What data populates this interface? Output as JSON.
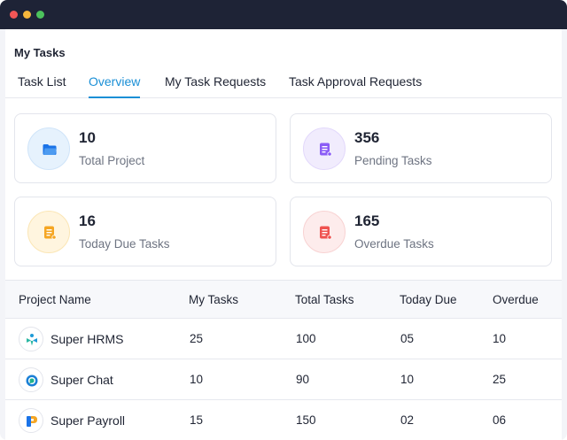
{
  "page": {
    "title": "My Tasks"
  },
  "tabs": [
    {
      "label": "Task List",
      "active": false
    },
    {
      "label": "Overview",
      "active": true
    },
    {
      "label": "My Task Requests",
      "active": false
    },
    {
      "label": "Task Approval Requests",
      "active": false
    }
  ],
  "stats": [
    {
      "value": "10",
      "label": "Total Project",
      "icon": "folder-icon",
      "color": "#1a73e8"
    },
    {
      "value": "356",
      "label": "Pending Tasks",
      "icon": "document-icon",
      "color": "#8b5cf6"
    },
    {
      "value": "16",
      "label": "Today Due Tasks",
      "icon": "document-icon",
      "color": "#f5a623"
    },
    {
      "value": "165",
      "label": "Overdue Tasks",
      "icon": "document-icon",
      "color": "#ef5350"
    }
  ],
  "table": {
    "headers": [
      "Project Name",
      "My Tasks",
      "Total Tasks",
      "Today Due",
      "Overdue"
    ],
    "rows": [
      {
        "name": "Super HRMS",
        "my_tasks": "25",
        "total_tasks": "100",
        "today_due": "05",
        "overdue": "10",
        "logo": "hrms-logo-icon"
      },
      {
        "name": "Super Chat",
        "my_tasks": "10",
        "total_tasks": "90",
        "today_due": "10",
        "overdue": "25",
        "logo": "chat-logo-icon"
      },
      {
        "name": "Super Payroll",
        "my_tasks": "15",
        "total_tasks": "150",
        "today_due": "02",
        "overdue": "06",
        "logo": "payroll-logo-icon"
      }
    ]
  },
  "colors": {
    "accent": "#1a8fd6",
    "titlebar": "#1e2336"
  }
}
